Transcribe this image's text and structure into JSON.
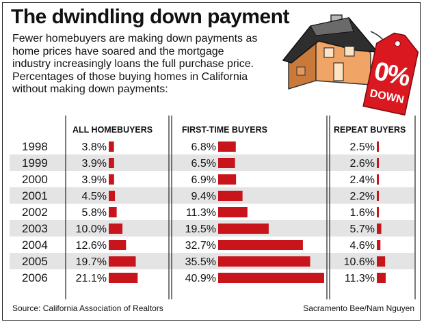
{
  "title": "The dwindling down payment",
  "intro": "Fewer homebuyers are making down payments as home prices have soared and the mortgage industry increasingly loans the full purchase price. Percentages of those buying homes in California without making down payments:",
  "sign": {
    "big": "0%",
    "small": "DOWN"
  },
  "source": "Source: California Association of Realtors",
  "credit": "Sacramento Bee/Nam Nguyen",
  "colors": {
    "bar": "#c8141b",
    "stripe": "#e4e4e4",
    "sign": "#d9181f",
    "roof": "#2e2e2e",
    "wall": "#f0a566"
  },
  "chart_data": {
    "type": "bar",
    "orientation": "horizontal",
    "categories": [
      "1998",
      "1999",
      "2000",
      "2001",
      "2002",
      "2003",
      "2004",
      "2005",
      "2006"
    ],
    "series": [
      {
        "name": "ALL HOMEBUYERS",
        "values": [
          3.8,
          3.9,
          3.9,
          4.5,
          5.8,
          10.0,
          12.6,
          19.7,
          21.1
        ],
        "labels": [
          "3.8%",
          "3.9%",
          "3.9%",
          "4.5%",
          "5.8%",
          "10.0%",
          "12.6%",
          "19.7%",
          "21.1%"
        ]
      },
      {
        "name": "FIRST-TIME BUYERS",
        "values": [
          6.8,
          6.5,
          6.9,
          9.4,
          11.3,
          19.5,
          32.7,
          35.5,
          40.9
        ],
        "labels": [
          "6.8%",
          "6.5%",
          "6.9%",
          "9.4%",
          "11.3%",
          "19.5%",
          "32.7%",
          "35.5%",
          "40.9%"
        ]
      },
      {
        "name": "REPEAT BUYERS",
        "values": [
          2.5,
          2.6,
          2.4,
          2.2,
          1.6,
          5.7,
          4.6,
          10.6,
          11.3
        ],
        "labels": [
          "2.5%",
          "2.6%",
          "2.4%",
          "2.2%",
          "1.6%",
          "5.7%",
          "4.6%",
          "10.6%",
          "11.3%"
        ]
      }
    ]
  }
}
